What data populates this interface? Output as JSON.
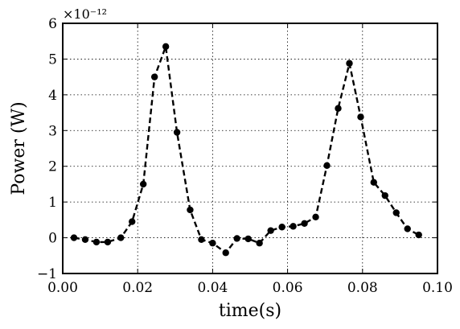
{
  "chart_data": {
    "type": "line",
    "title": "",
    "xlabel": "time(s)",
    "ylabel": "Power (W)",
    "y_offset_text": "×10⁻¹²",
    "xlim": [
      0.0,
      0.1
    ],
    "ylim": [
      -1,
      6
    ],
    "x_ticks": [
      0.0,
      0.02,
      0.04,
      0.06,
      0.08,
      0.1
    ],
    "x_tick_labels": [
      "0.00",
      "0.02",
      "0.04",
      "0.06",
      "0.08",
      "0.10"
    ],
    "y_ticks": [
      -1,
      0,
      1,
      2,
      3,
      4,
      5,
      6
    ],
    "y_tick_labels": [
      "−1",
      "0",
      "1",
      "2",
      "3",
      "4",
      "5",
      "6"
    ],
    "grid": true,
    "series": [
      {
        "line_style": "dashed",
        "marker": "circle",
        "color": "#000000",
        "x": [
          0.003,
          0.006,
          0.009,
          0.012,
          0.0155,
          0.0185,
          0.0215,
          0.0245,
          0.0275,
          0.0305,
          0.034,
          0.037,
          0.04,
          0.0435,
          0.0465,
          0.0495,
          0.0525,
          0.0555,
          0.0585,
          0.0615,
          0.0645,
          0.0675,
          0.0705,
          0.0735,
          0.0765,
          0.0795,
          0.083,
          0.086,
          0.089,
          0.092,
          0.095
        ],
        "y": [
          0.0,
          -0.05,
          -0.12,
          -0.12,
          0.0,
          0.45,
          1.5,
          4.5,
          5.35,
          2.95,
          0.78,
          -0.05,
          -0.15,
          -0.42,
          -0.02,
          -0.03,
          -0.15,
          0.2,
          0.3,
          0.32,
          0.4,
          0.58,
          2.02,
          3.62,
          4.88,
          3.38,
          1.55,
          1.18,
          0.7,
          0.25,
          0.08
        ]
      }
    ]
  }
}
